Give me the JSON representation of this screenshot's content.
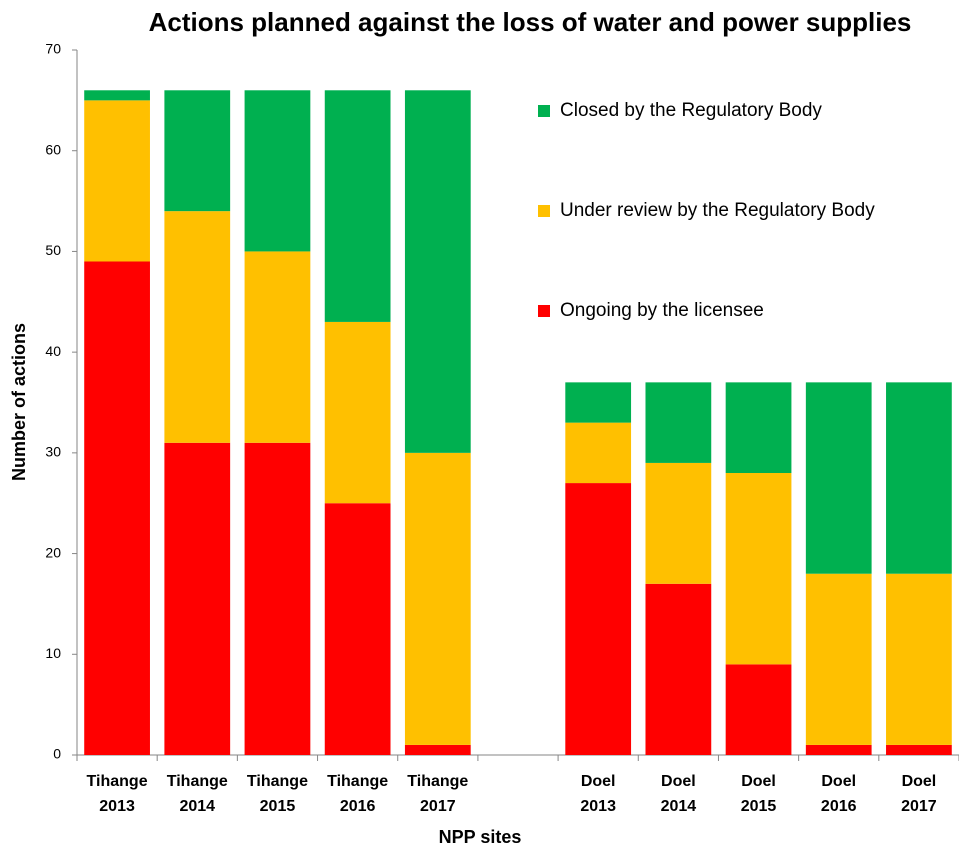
{
  "chart_data": {
    "type": "stacked_bar",
    "title": "Actions planned against the loss of water and power supplies",
    "x_label": "NPP sites",
    "y_label": "Number of actions",
    "categories": [
      "Tihange 2013",
      "Tihange 2014",
      "Tihange 2015",
      "Tihange 2016",
      "Tihange 2017",
      null,
      "Doel 2013",
      "Doel 2014",
      "Doel 2015",
      "Doel 2016",
      "Doel 2017"
    ],
    "series": [
      {
        "name": "Ongoing by the licensee",
        "color": "#ff0000",
        "values": [
          49,
          31,
          31,
          25,
          1,
          null,
          27,
          17,
          9,
          1,
          1
        ]
      },
      {
        "name": "Under review by the Regulatory Body",
        "color": "#ffc000",
        "values": [
          16,
          23,
          19,
          18,
          29,
          null,
          6,
          12,
          19,
          17,
          17
        ]
      },
      {
        "name": "Closed by the Regulatory Body",
        "color": "#00b050",
        "values": [
          1,
          12,
          16,
          23,
          36,
          null,
          4,
          8,
          9,
          19,
          19
        ]
      }
    ],
    "ylim": [
      0,
      70
    ],
    "yticks": [
      0,
      10,
      20,
      30,
      40,
      50,
      60,
      70
    ],
    "grid": false,
    "legend": "right"
  }
}
